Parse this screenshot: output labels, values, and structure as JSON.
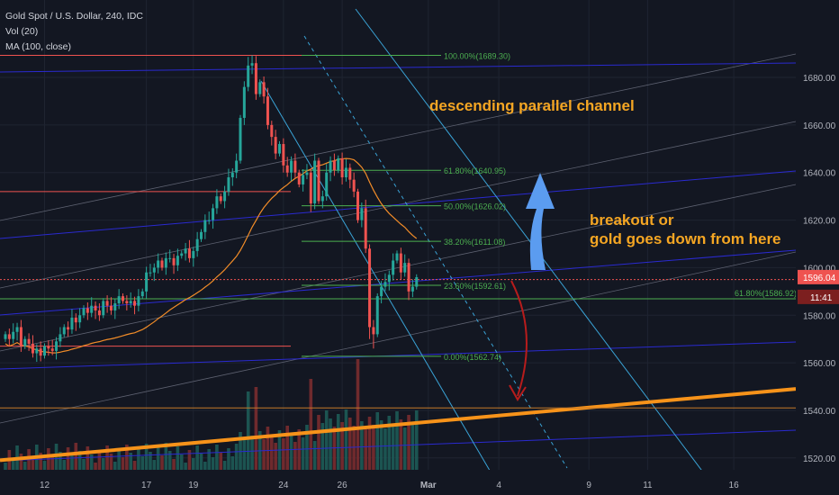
{
  "legend": {
    "symbol": "Gold Spot / U.S. Dollar, 240, IDC",
    "volume": "Vol (20)",
    "ma": "MA (100, close)"
  },
  "annotations": {
    "channel": "descending parallel channel",
    "breakout_line1": "breakout or",
    "breakout_line2": "gold goes down from here"
  },
  "colors": {
    "background": "#131722",
    "up": "#26a69a",
    "down": "#ef5350",
    "annotation_text": "#f5a623",
    "orange_trendline": "#f7931a",
    "fib": "#4caf50",
    "channel": "#3aa3d6",
    "blue_arrow": "#5b9cf0",
    "red_arrow": "#b71c1c",
    "price_tag": "#ef5350",
    "time_tag": "#7c1f1f"
  },
  "chart_data": {
    "type": "candlestick",
    "symbol": "Gold Spot / U.S. Dollar",
    "interval": "240",
    "source": "IDC",
    "ylim": [
      1515,
      1705
    ],
    "y_ticks": [
      1520.0,
      1540.0,
      1560.0,
      1580.0,
      1600.0,
      1620.0,
      1640.0,
      1660.0,
      1680.0
    ],
    "y_tick_labels": [
      "1520.00",
      "1540.00",
      "1560.00",
      "1580.00",
      "1600.00",
      "1620.00",
      "1640.00",
      "1660.00",
      "1680.00"
    ],
    "x_tick_labels": [
      "12",
      "17",
      "19",
      "24",
      "26",
      "Mar",
      "4",
      "9",
      "11",
      "16"
    ],
    "x_tick_bars": [
      10,
      36,
      48,
      71,
      86,
      108,
      126,
      149,
      164,
      186
    ],
    "total_bars": 202,
    "candles_close": [
      1572,
      1570,
      1573,
      1575,
      1567,
      1570,
      1568,
      1564,
      1566,
      1563,
      1567,
      1566,
      1565,
      1569,
      1572,
      1575,
      1574,
      1579,
      1577,
      1580,
      1583,
      1581,
      1584,
      1582,
      1580,
      1586,
      1584,
      1582,
      1585,
      1588,
      1586,
      1585,
      1586,
      1584,
      1588,
      1590,
      1598,
      1598,
      1600,
      1603,
      1600,
      1604,
      1604,
      1601,
      1605,
      1606,
      1608,
      1604,
      1607,
      1612,
      1615,
      1620,
      1620,
      1625,
      1630,
      1628,
      1632,
      1638,
      1640,
      1645,
      1663,
      1676,
      1685,
      1686,
      1673,
      1678,
      1672,
      1660,
      1655,
      1648,
      1652,
      1643,
      1640,
      1645,
      1640,
      1635,
      1639,
      1640,
      1627,
      1645,
      1628,
      1630,
      1640,
      1645,
      1641,
      1646,
      1638,
      1642,
      1637,
      1632,
      1620,
      1625,
      1608,
      1575,
      1572,
      1588,
      1592,
      1594,
      1597,
      1603,
      1606,
      1598,
      1602,
      1590,
      1592,
      1596
    ],
    "last_price": "1596.04",
    "time_to_close": "11:41",
    "volume_bars": 106,
    "moving_average": {
      "period": 100,
      "source": "close"
    },
    "fibonacci": [
      {
        "label": "100.00%(1689.30)",
        "level": 1.0,
        "price": 1689.3
      },
      {
        "label": "61.80%(1640.95)",
        "level": 0.618,
        "price": 1640.95
      },
      {
        "label": "50.00%(1626.02)",
        "level": 0.5,
        "price": 1626.02
      },
      {
        "label": "38.20%(1611.08)",
        "level": 0.382,
        "price": 1611.08
      },
      {
        "label": "23.60%(1592.61)",
        "level": 0.236,
        "price": 1592.61
      },
      {
        "label": "0.00%(1562.74)",
        "level": 0.0,
        "price": 1562.74
      }
    ],
    "fibonacci_extra": [
      {
        "label": "61.80%(1586.92)",
        "level": 0.618,
        "price": 1586.92
      }
    ],
    "horizontal_levels_red": [
      1689.3,
      1632,
      1595,
      1567
    ],
    "channel": "descending parallel channel",
    "trendline_orange_prices": [
      1519,
      1549
    ]
  }
}
